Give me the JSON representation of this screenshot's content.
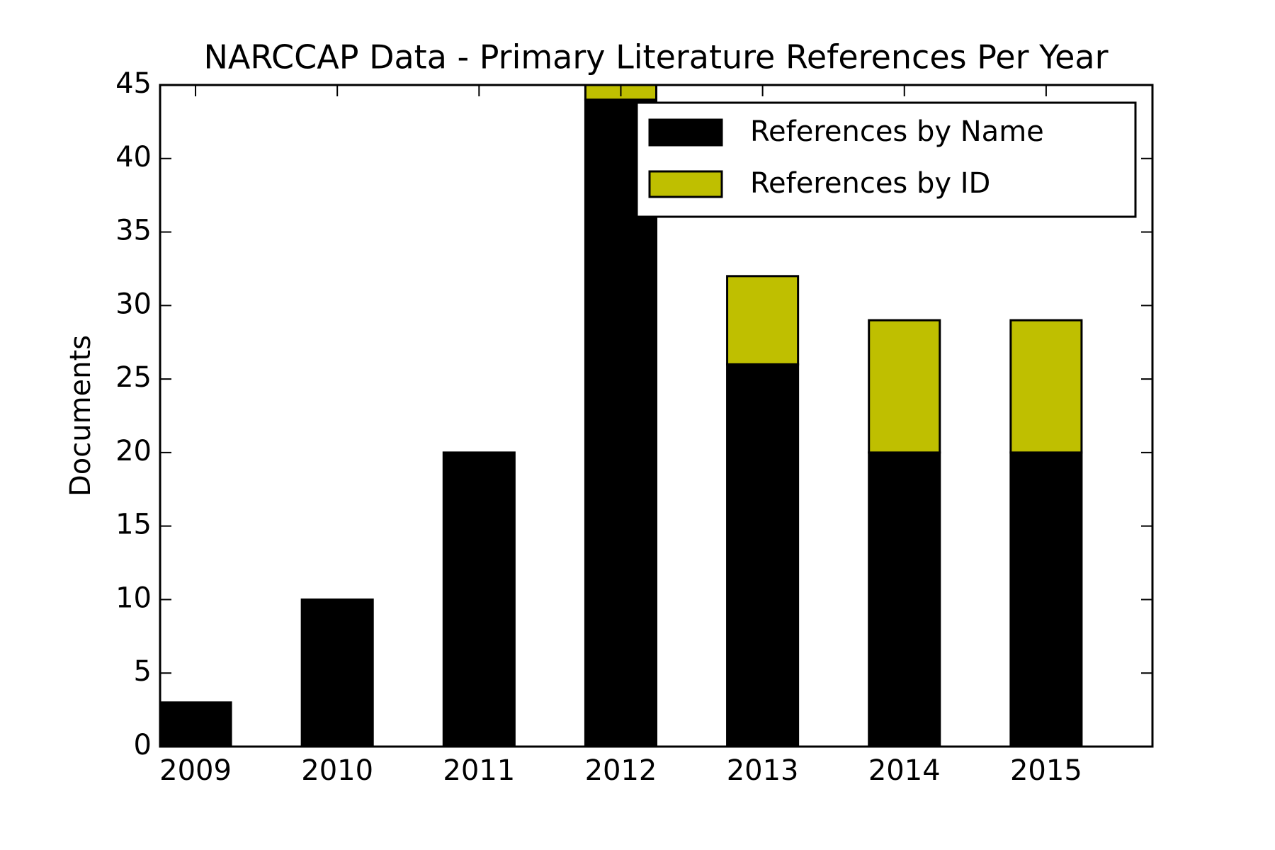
{
  "chart_data": {
    "type": "stacked_bar",
    "title": "NARCCAP Data - Primary Literature References Per Year",
    "y_label": "Documents",
    "categories": [
      "2009",
      "2010",
      "2011",
      "2012",
      "2013",
      "2014",
      "2015"
    ],
    "series": [
      {
        "name": "References by Name",
        "color": "#000000",
        "values": [
          3,
          10,
          20,
          44,
          26,
          20,
          20
        ]
      },
      {
        "name": "References by ID",
        "color": "#bfbf00",
        "values": [
          0,
          0,
          0,
          1,
          6,
          9,
          9
        ]
      }
    ],
    "ylim": [
      0,
      45
    ],
    "yticks": [
      0,
      5,
      10,
      15,
      20,
      25,
      30,
      35,
      40,
      45
    ],
    "legend": "upper right"
  }
}
